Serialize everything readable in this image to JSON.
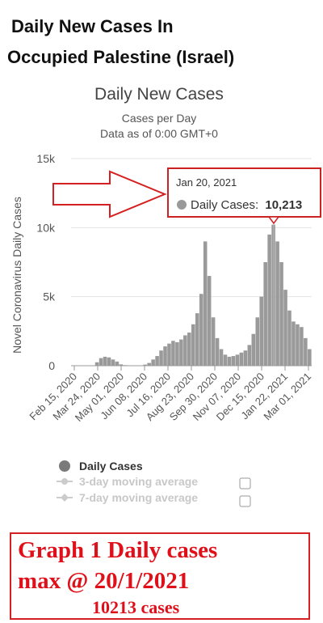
{
  "header": {
    "line1": "Daily New Cases In",
    "line2": "Occupied Palestine (Israel)"
  },
  "chart_data": {
    "type": "bar",
    "title": "Daily New Cases",
    "subtitle_1": "Cases per Day",
    "subtitle_2": "Data as of 0:00 GMT+0",
    "ylabel": "Novel Coronavirus Daily Cases",
    "xlabel": "",
    "ylim": [
      0,
      15000
    ],
    "yticks": [
      0,
      5000,
      10000,
      15000
    ],
    "ytick_labels": [
      "0",
      "5k",
      "10k",
      "15k"
    ],
    "xtick_labels": [
      "Feb 15, 2020",
      "Mar 24, 2020",
      "May 01, 2020",
      "Jun 08, 2020",
      "Jul 16, 2020",
      "Aug 23, 2020",
      "Sep 30, 2020",
      "Nov 07, 2020",
      "Dec 15, 2020",
      "Jan 22, 2021",
      "Mar 01, 2021"
    ],
    "grid": true,
    "color": "#9a9a9a",
    "series": [
      {
        "name": "Daily Cases",
        "values_weekly_approx": [
          0,
          0,
          0,
          0,
          0,
          0,
          250,
          550,
          650,
          600,
          450,
          300,
          100,
          40,
          20,
          15,
          20,
          30,
          80,
          200,
          450,
          700,
          1100,
          1400,
          1600,
          1800,
          1700,
          1900,
          2200,
          2400,
          3000,
          3800,
          5200,
          9000,
          6500,
          3500,
          2000,
          1200,
          800,
          650,
          700,
          800,
          950,
          1100,
          1500,
          2300,
          3500,
          5000,
          7500,
          9500,
          10213,
          9000,
          7500,
          5500,
          4000,
          3200,
          3000,
          2800,
          2000,
          1200
        ],
        "start_date": "Feb 15, 2020",
        "interval_days": 7
      }
    ],
    "tooltip": {
      "date": "Jan 20, 2021",
      "label": "Daily Cases:",
      "value": "10,213",
      "value_num": 10213
    },
    "legend": {
      "position": "bottom-left",
      "items": [
        {
          "label": "Daily Cases",
          "active": true
        },
        {
          "label": "3-day moving average",
          "active": false
        },
        {
          "label": "7-day moving average",
          "active": false
        }
      ]
    }
  },
  "caption": {
    "line1": "Graph 1 Daily cases",
    "line2": "max @ 20/1/2021",
    "line3": "10213 cases"
  },
  "colors": {
    "bars": "#9a9a9a",
    "annotation_red": "#d42020",
    "caption_red": "#e0101a"
  }
}
